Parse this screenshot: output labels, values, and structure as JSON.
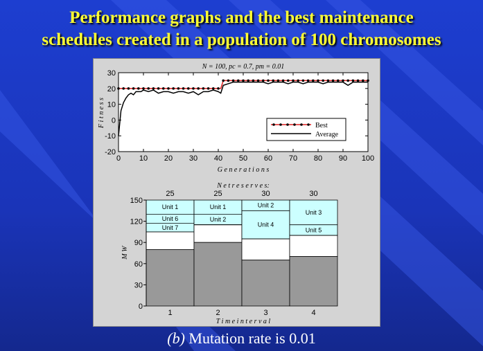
{
  "slide": {
    "title_line1": "Performance graphs and the best maintenance",
    "title_line2": "schedules created in a population of 100 chromosomes",
    "caption_label": "(b)",
    "caption_text": " Mutation rate is 0.01"
  },
  "colors": {
    "background": "#1a34b8",
    "title": "#ffff33",
    "best_line": "#e02020",
    "best_marker": "#000000",
    "avg_line": "#000000",
    "reserve_fill": "#ccffff",
    "load_fill": "#999999"
  },
  "chart_data": [
    {
      "type": "line",
      "title": "N = 100,  pc = 0.7,  pm = 0.01",
      "xlabel": "G e n e r a t i o n s",
      "ylabel": "F i t n e s s",
      "xlim": [
        0,
        100
      ],
      "ylim": [
        -20,
        30
      ],
      "xticks": [
        0,
        10,
        20,
        30,
        40,
        50,
        60,
        70,
        80,
        90,
        100
      ],
      "yticks": [
        -20,
        -10,
        0,
        10,
        20,
        30
      ],
      "legend_position": "center-right",
      "series": [
        {
          "name": "Best",
          "x": [
            0,
            1,
            40,
            41,
            42,
            100
          ],
          "y": [
            20,
            20,
            20,
            20,
            25,
            25
          ],
          "marker_x": [
            0,
            2,
            4,
            6,
            8,
            10,
            12,
            14,
            16,
            18,
            20,
            22,
            24,
            26,
            28,
            30,
            32,
            34,
            36,
            38,
            40,
            42,
            44,
            46,
            48,
            50,
            52,
            54,
            56,
            58,
            60,
            62,
            64,
            66,
            68,
            70,
            72,
            74,
            76,
            78,
            80,
            82,
            84,
            86,
            88,
            90,
            92,
            94,
            96,
            98,
            100
          ]
        },
        {
          "name": "Average",
          "x": [
            0,
            1,
            2,
            3,
            4,
            5,
            6,
            7,
            8,
            9,
            10,
            12,
            14,
            16,
            18,
            20,
            22,
            24,
            26,
            28,
            30,
            32,
            34,
            36,
            38,
            40,
            41,
            42,
            44,
            46,
            48,
            50,
            52,
            54,
            56,
            58,
            60,
            62,
            64,
            66,
            68,
            70,
            72,
            74,
            76,
            78,
            80,
            82,
            84,
            86,
            88,
            90,
            92,
            94,
            96,
            98,
            100
          ],
          "y": [
            -10,
            6,
            11,
            14,
            16,
            17,
            16,
            18,
            18,
            18,
            19,
            18,
            19,
            17,
            18,
            18,
            17,
            18,
            18,
            17,
            18,
            16,
            18,
            18,
            19,
            18,
            17,
            22,
            23,
            24,
            24,
            24,
            24,
            24,
            24,
            24,
            23,
            24,
            24,
            24,
            23,
            24,
            24,
            23,
            24,
            24,
            24,
            23,
            24,
            24,
            24,
            24,
            22,
            24,
            24,
            24,
            24
          ]
        }
      ]
    },
    {
      "type": "bar",
      "title": "N e t   r e s e r v e s:",
      "xlabel": "T i m e   i n t e r v a l",
      "ylabel": "M W",
      "ylim": [
        0,
        150
      ],
      "yticks": [
        0,
        30,
        60,
        90,
        120,
        150
      ],
      "categories": [
        "1",
        "2",
        "3",
        "4"
      ],
      "net_reserves": [
        "25",
        "25",
        "30",
        "30"
      ],
      "load": [
        80,
        90,
        65,
        70
      ],
      "reserve_top": [
        105,
        115,
        95,
        100
      ],
      "units": [
        {
          "interval": 0,
          "label": "Unit 1",
          "from": 130,
          "to": 150
        },
        {
          "interval": 0,
          "label": "Unit 6",
          "from": 117,
          "to": 130
        },
        {
          "interval": 0,
          "label": "Unit 7",
          "from": 105,
          "to": 117
        },
        {
          "interval": 1,
          "label": "Unit 1",
          "from": 130,
          "to": 150
        },
        {
          "interval": 1,
          "label": "Unit 2",
          "from": 115,
          "to": 130
        },
        {
          "interval": 2,
          "label": "Unit 2",
          "from": 135,
          "to": 150
        },
        {
          "interval": 2,
          "label": "Unit 4",
          "from": 95,
          "to": 135
        },
        {
          "interval": 3,
          "label": "Unit 3",
          "from": 115,
          "to": 150
        },
        {
          "interval": 3,
          "label": "Unit 5",
          "from": 100,
          "to": 115
        }
      ]
    }
  ]
}
